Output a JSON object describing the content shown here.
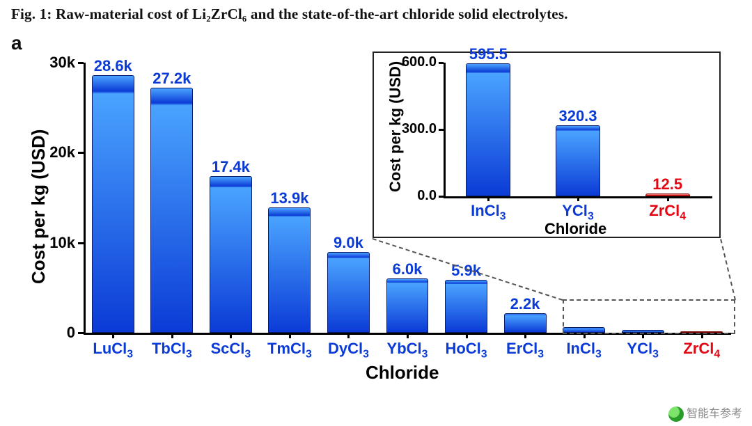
{
  "caption": "Fig. 1: Raw-material cost of Li₂ZrCl₆ and the state-of-the-art chloride solid electrolytes.",
  "panel_label": "a",
  "colors": {
    "text": "#000000",
    "category_blue": "#0b3bd6",
    "category_red": "#e30613",
    "bar_top": "#4aa3ff",
    "bar_bottom": "#0b3bd6",
    "bar_border": "#0a1a6a",
    "red_bar_top": "#ff8a8a",
    "red_bar_bottom": "#d40000",
    "axis": "#000000",
    "dash": "#555555",
    "background": "#ffffff"
  },
  "typography": {
    "caption_family": "Georgia",
    "caption_size": 21,
    "caption_weight": 700,
    "panel_label_size": 28,
    "axis_title_size": 26,
    "tick_label_size": 22,
    "bar_label_size_main": 22,
    "x_category_size_main": 22,
    "inset_axis_title_size": 22,
    "inset_tick_label_size": 20,
    "inset_bar_label_size": 22,
    "inset_x_category_size": 22
  },
  "main_chart": {
    "type": "bar",
    "xlabel": "Chloride",
    "ylabel": "Cost per kg (USD)",
    "ylim": [
      0,
      30000
    ],
    "yticks": [
      0,
      10000,
      20000,
      30000
    ],
    "ytick_labels": [
      "0",
      "10k",
      "20k",
      "30k"
    ],
    "bar_width_ratio": 0.72,
    "categories": [
      "LuCl₃",
      "TbCl₃",
      "ScCl₃",
      "TmCl₃",
      "DyCl₃",
      "YbCl₃",
      "HoCl₃",
      "ErCl₃",
      "InCl₃",
      "YCl₃",
      "ZrCl₄"
    ],
    "category_colors": [
      "blue",
      "blue",
      "blue",
      "blue",
      "blue",
      "blue",
      "blue",
      "blue",
      "blue",
      "blue",
      "red"
    ],
    "values": [
      28600,
      27200,
      17400,
      13900,
      9000,
      6000,
      5900,
      2200,
      595.5,
      320.3,
      12.5
    ],
    "value_labels": [
      "28.6k",
      "27.2k",
      "17.4k",
      "13.9k",
      "9.0k",
      "6.0k",
      "5.9k",
      "2.2k",
      "",
      "",
      ""
    ],
    "last_category_partially_hidden": true
  },
  "inset_chart": {
    "type": "bar",
    "xlabel": "Chloride",
    "ylabel": "Cost per kg (USD)",
    "ylim": [
      0,
      600
    ],
    "yticks": [
      0,
      300,
      600
    ],
    "ytick_labels": [
      "0.0",
      "300.0",
      "600.0"
    ],
    "bar_width_ratio": 0.5,
    "categories": [
      "InCl₃",
      "YCl₃",
      "ZrCl₄"
    ],
    "category_colors": [
      "blue",
      "blue",
      "red"
    ],
    "values": [
      595.5,
      320.3,
      12.5
    ],
    "value_labels": [
      "595.5",
      "320.3",
      "12.5"
    ]
  },
  "watermark": "智能车参考"
}
